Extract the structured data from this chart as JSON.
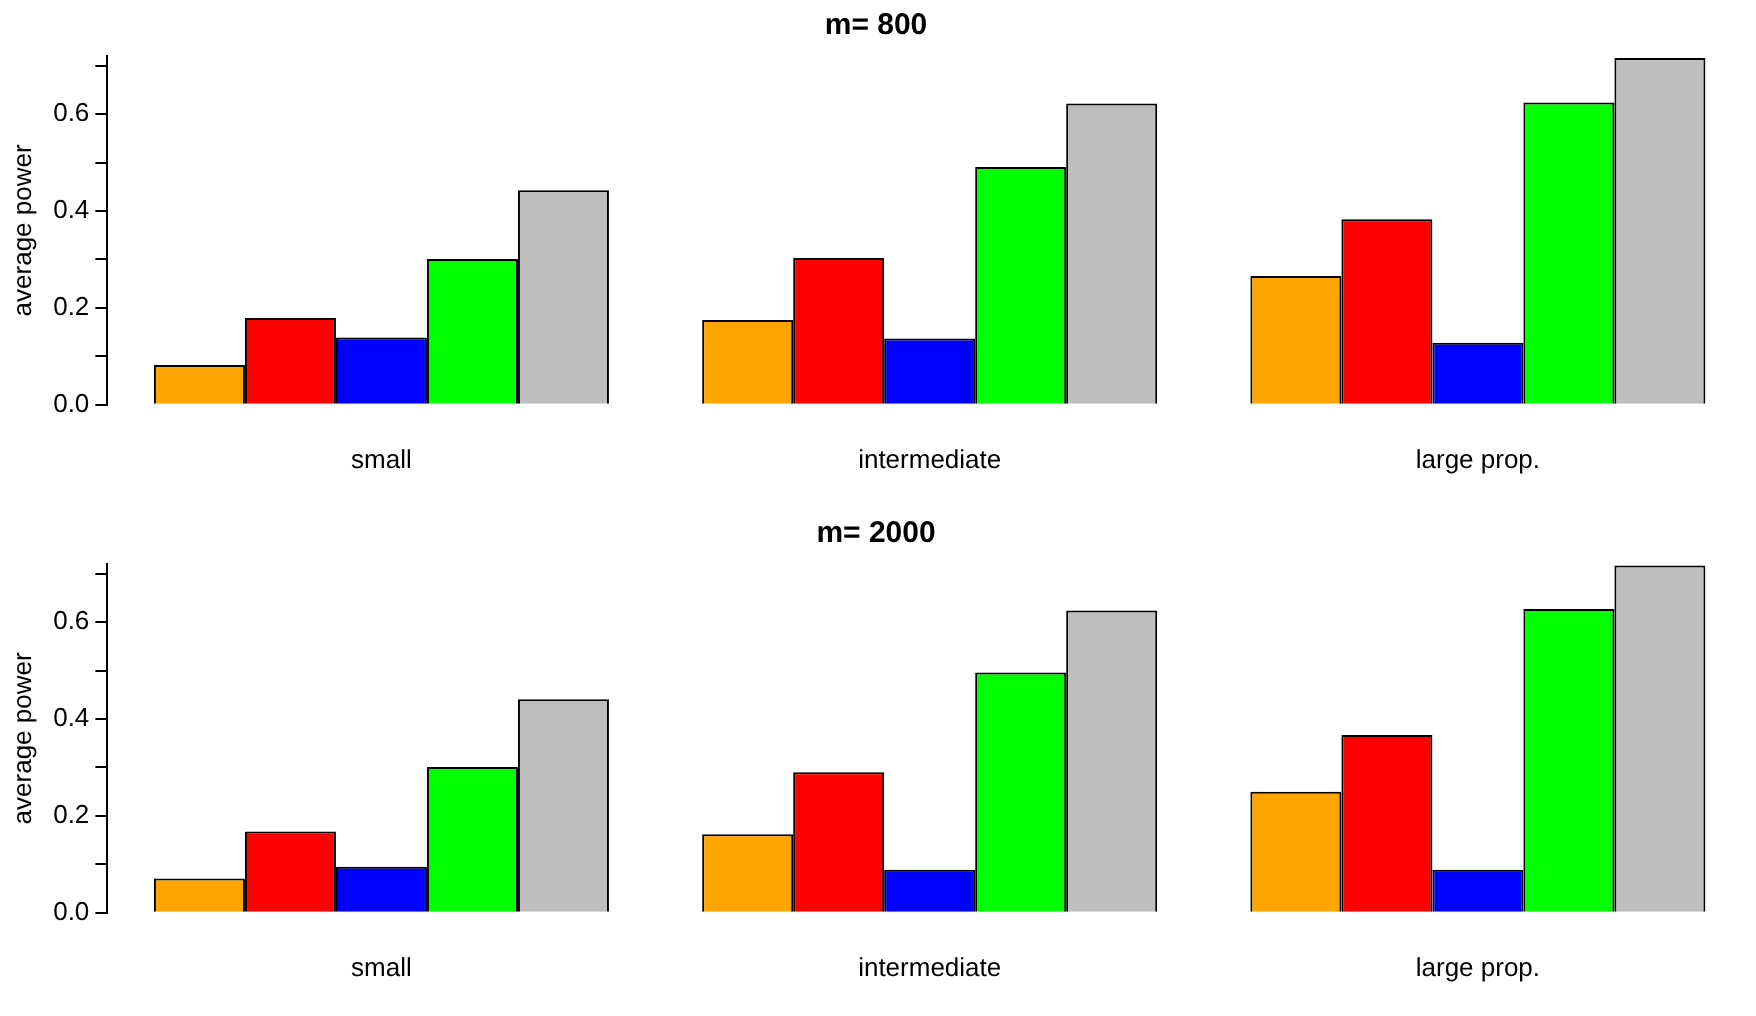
{
  "chart_data": [
    {
      "type": "bar",
      "title": "m= 800",
      "ylabel": "average power",
      "categories": [
        "small",
        "intermediate",
        "large prop."
      ],
      "series": [
        {
          "color": "#ffa500",
          "values": [
            0.082,
            0.175,
            0.266
          ]
        },
        {
          "color": "#ff0000",
          "values": [
            0.179,
            0.303,
            0.383
          ]
        },
        {
          "color": "#0000ff",
          "values": [
            0.139,
            0.137,
            0.128
          ]
        },
        {
          "color": "#00ff00",
          "values": [
            0.301,
            0.491,
            0.624
          ]
        },
        {
          "color": "#bebebe",
          "values": [
            0.443,
            0.622,
            0.716
          ]
        }
      ],
      "ylim": [
        0,
        0.72
      ],
      "yticks": [
        {
          "value": 0,
          "label": "0.0"
        },
        {
          "value": 0.1,
          "label": null
        },
        0.2,
        {
          "value": 0.3,
          "label": null
        },
        0.4,
        {
          "value": 0.5,
          "label": null
        },
        0.6,
        {
          "value": 0.7,
          "label": null
        }
      ],
      "grid": false,
      "legend": false
    },
    {
      "type": "bar",
      "title": "m= 2000",
      "ylabel": "average power",
      "categories": [
        "small",
        "intermediate",
        "large prop."
      ],
      "series": [
        {
          "color": "#ffa500",
          "values": [
            0.071,
            0.162,
            0.25
          ]
        },
        {
          "color": "#ff0000",
          "values": [
            0.168,
            0.29,
            0.367
          ]
        },
        {
          "color": "#0000ff",
          "values": [
            0.095,
            0.089,
            0.089
          ]
        },
        {
          "color": "#00ff00",
          "values": [
            0.301,
            0.496,
            0.627
          ]
        },
        {
          "color": "#bebebe",
          "values": [
            0.441,
            0.624,
            0.717
          ]
        }
      ],
      "ylim": [
        0,
        0.72
      ],
      "yticks": [
        {
          "value": 0,
          "label": "0.0"
        },
        {
          "value": 0.1,
          "label": null
        },
        0.2,
        {
          "value": 0.3,
          "label": null
        },
        0.4,
        {
          "value": 0.5,
          "label": null
        },
        0.6,
        {
          "value": 0.7,
          "label": null
        }
      ],
      "grid": false,
      "legend": false
    }
  ]
}
